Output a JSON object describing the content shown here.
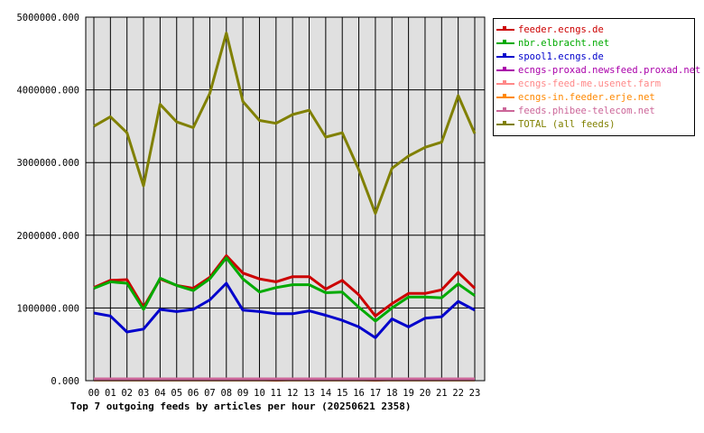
{
  "chart_data": {
    "type": "line",
    "title": "Top 7 outgoing feeds by articles per hour (20250621 2358)",
    "xlabel": "",
    "ylabel": "",
    "ylim": [
      0,
      5000000
    ],
    "y_ticks": [
      "0.000",
      "1000000.000",
      "2000000.000",
      "3000000.000",
      "4000000.000",
      "5000000.000"
    ],
    "categories": [
      "00",
      "01",
      "02",
      "03",
      "04",
      "05",
      "06",
      "07",
      "08",
      "09",
      "10",
      "11",
      "12",
      "13",
      "14",
      "15",
      "16",
      "17",
      "18",
      "19",
      "20",
      "21",
      "22",
      "23"
    ],
    "grid": true,
    "legend_position": "top-right",
    "plot_background": "#e0e0e0",
    "series": [
      {
        "name": "feeder.ecngs.de",
        "color": "#cc0000",
        "values": [
          1280000,
          1380000,
          1390000,
          1010000,
          1400000,
          1310000,
          1270000,
          1420000,
          1720000,
          1480000,
          1400000,
          1360000,
          1430000,
          1430000,
          1260000,
          1380000,
          1180000,
          890000,
          1060000,
          1200000,
          1200000,
          1250000,
          1490000,
          1270000
        ]
      },
      {
        "name": "nbr.elbracht.net",
        "color": "#00aa00",
        "values": [
          1270000,
          1360000,
          1340000,
          980000,
          1410000,
          1310000,
          1240000,
          1400000,
          1690000,
          1400000,
          1220000,
          1280000,
          1320000,
          1320000,
          1210000,
          1220000,
          1010000,
          820000,
          1000000,
          1150000,
          1150000,
          1140000,
          1330000,
          1170000
        ]
      },
      {
        "name": "spool1.ecngs.de",
        "color": "#0000cc",
        "values": [
          930000,
          890000,
          670000,
          710000,
          980000,
          950000,
          980000,
          1110000,
          1340000,
          970000,
          950000,
          920000,
          920000,
          960000,
          900000,
          830000,
          740000,
          590000,
          850000,
          740000,
          860000,
          880000,
          1090000,
          970000
        ]
      },
      {
        "name": "ecngs-proxad.newsfeed.proxad.net",
        "color": "#aa00aa",
        "values": [
          20000,
          20000,
          20000,
          20000,
          20000,
          20000,
          20000,
          20000,
          20000,
          20000,
          20000,
          20000,
          20000,
          20000,
          20000,
          20000,
          20000,
          20000,
          20000,
          20000,
          20000,
          20000,
          20000,
          20000
        ]
      },
      {
        "name": "ecngs-feed-me.usenet.farm",
        "color": "#ff8888",
        "values": [
          15000,
          15000,
          15000,
          15000,
          15000,
          15000,
          15000,
          15000,
          15000,
          15000,
          15000,
          5000,
          15000,
          15000,
          15000,
          15000,
          15000,
          5000,
          15000,
          15000,
          15000,
          15000,
          15000,
          15000
        ]
      },
      {
        "name": "ecngs-in.feeder.erje.net",
        "color": "#ff8800",
        "values": [
          10000,
          10000,
          10000,
          10000,
          10000,
          10000,
          10000,
          10000,
          10000,
          10000,
          10000,
          10000,
          10000,
          10000,
          10000,
          10000,
          10000,
          10000,
          10000,
          10000,
          10000,
          10000,
          10000,
          10000
        ]
      },
      {
        "name": "feeds.phibee-telecom.net",
        "color": "#cc6699",
        "values": [
          25000,
          25000,
          25000,
          25000,
          25000,
          25000,
          25000,
          25000,
          25000,
          25000,
          25000,
          25000,
          25000,
          25000,
          25000,
          25000,
          25000,
          25000,
          25000,
          25000,
          25000,
          25000,
          25000,
          25000
        ]
      },
      {
        "name": "TOTAL (all feeds)",
        "color": "#808000",
        "values": [
          3500000,
          3630000,
          3410000,
          2680000,
          3800000,
          3560000,
          3480000,
          3950000,
          4780000,
          3840000,
          3580000,
          3540000,
          3660000,
          3720000,
          3350000,
          3410000,
          2900000,
          2300000,
          2920000,
          3090000,
          3210000,
          3280000,
          3920000,
          3400000
        ]
      }
    ]
  }
}
